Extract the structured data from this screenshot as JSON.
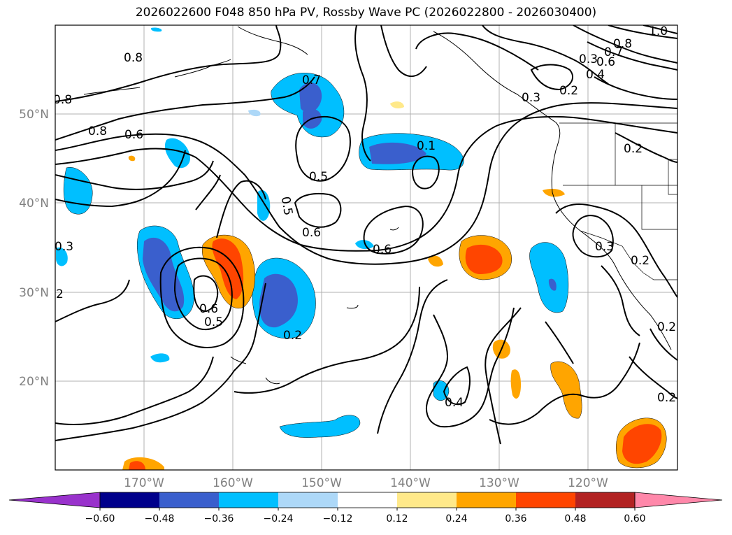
{
  "title": "2026022600 F048 850 hPa PV, Rossby Wave PC (2026022800 - 2026030400)",
  "axes": {
    "lat_ticks": [
      "50°N",
      "40°N",
      "30°N",
      "20°N"
    ],
    "lon_ticks": [
      "170°W",
      "160°W",
      "150°W",
      "140°W",
      "130°W",
      "120°W"
    ]
  },
  "colorbar": {
    "ticks": [
      "−0.60",
      "−0.48",
      "−0.36",
      "−0.24",
      "−0.12",
      "0.12",
      "0.24",
      "0.36",
      "0.48",
      "0.60"
    ],
    "colors": [
      "#9932cc",
      "#00008b",
      "#3a5fcd",
      "#00bfff",
      "#add8f8",
      "#ffffff",
      "#ffe98a",
      "#ffa500",
      "#ff4500",
      "#b22222",
      "#ff88aa"
    ]
  },
  "contour_labels": [
    {
      "text": "0.8"
    },
    {
      "text": "0.8"
    },
    {
      "text": "0.8"
    },
    {
      "text": "0.6"
    },
    {
      "text": "0.7"
    },
    {
      "text": "0.5"
    },
    {
      "text": "0.5"
    },
    {
      "text": "0.6"
    },
    {
      "text": "0.6"
    },
    {
      "text": "0.1"
    },
    {
      "text": "0.3"
    },
    {
      "text": "2"
    },
    {
      "text": "0.6"
    },
    {
      "text": "0.5"
    },
    {
      "text": "0.2"
    },
    {
      "text": "0.4"
    },
    {
      "text": "0.3"
    },
    {
      "text": "0.2"
    },
    {
      "text": "0.3"
    },
    {
      "text": "0.6"
    },
    {
      "text": "0.7"
    },
    {
      "text": "0.8"
    },
    {
      "text": "1.0"
    },
    {
      "text": "0.4"
    },
    {
      "text": "0.2"
    },
    {
      "text": "0.3"
    },
    {
      "text": "0.2"
    },
    {
      "text": "0.2"
    },
    {
      "text": "0.2"
    }
  ]
}
